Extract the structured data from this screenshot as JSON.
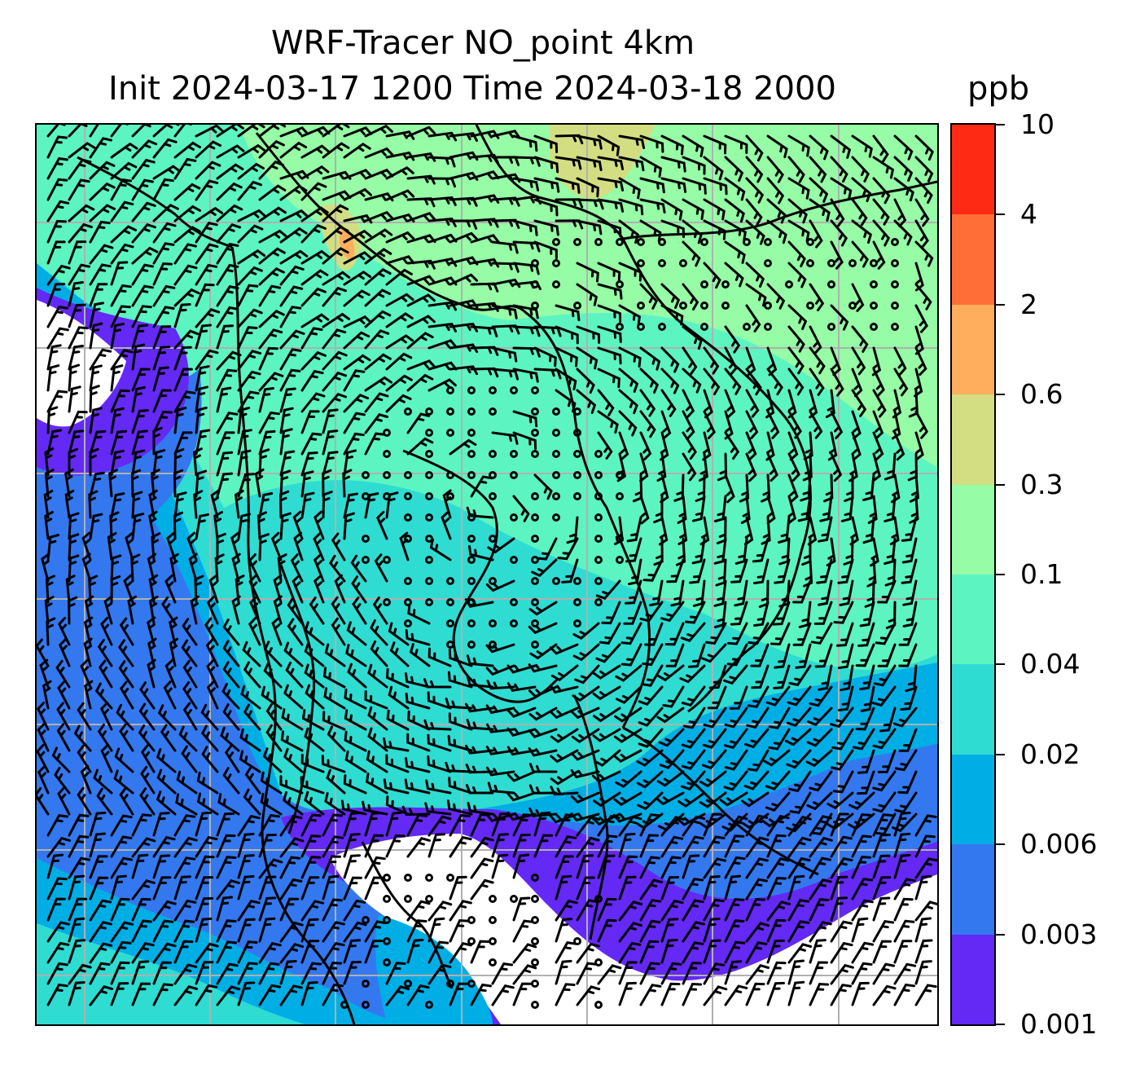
{
  "map": {
    "title_line1": "WRF-Tracer NO_point 4km",
    "title_line2": "Init 2024-03-17 1200 Time 2024-03-18 2000",
    "colorbar_unit": "ppb",
    "colorbar": {
      "levels": [
        "0.001",
        "0.003",
        "0.006",
        "0.02",
        "0.04",
        "0.1",
        "0.3",
        "0.6",
        "2",
        "4",
        "10"
      ],
      "colors": [
        "#6429f5",
        "#3478f0",
        "#00aee6",
        "#2fdcd2",
        "#5cf5c2",
        "#96fca6",
        "#d3de82",
        "#ffae5e",
        "#ff6e36",
        "#ff2a14"
      ]
    },
    "overlay": {
      "wind_barbs": true,
      "coastlines": true,
      "borders": true,
      "gridlines": true,
      "gridline_color": "#b0b0b0",
      "masked_color": "#ffffff"
    }
  }
}
